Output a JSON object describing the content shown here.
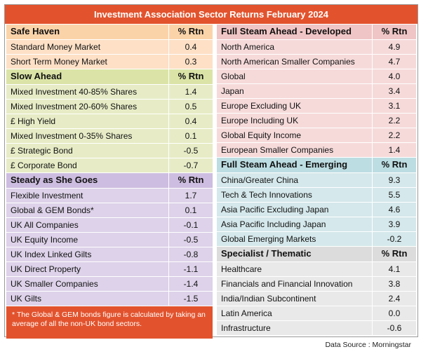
{
  "title": "Investment Association Sector Returns February 2024",
  "header_val": "% Rtn",
  "left": {
    "safe_haven": {
      "heading": "Safe Haven",
      "rows": [
        {
          "name": "Standard Money Market",
          "val": "0.4"
        },
        {
          "name": "Short Term Money Market",
          "val": "0.3"
        }
      ]
    },
    "slow_ahead": {
      "heading": "Slow Ahead",
      "rows": [
        {
          "name": "Mixed Investment 40-85% Shares",
          "val": "1.4"
        },
        {
          "name": "Mixed Investment 20-60% Shares",
          "val": "0.5"
        },
        {
          "name": "£ High Yield",
          "val": "0.4"
        },
        {
          "name": "Mixed Investment 0-35% Shares",
          "val": "0.1"
        },
        {
          "name": "£ Strategic Bond",
          "val": "-0.5"
        },
        {
          "name": "£ Corporate Bond",
          "val": "-0.7"
        }
      ]
    },
    "steady": {
      "heading": "Steady as She Goes",
      "rows": [
        {
          "name": "Flexible Investment",
          "val": "1.7"
        },
        {
          "name": "Global & GEM Bonds*",
          "val": "0.1"
        },
        {
          "name": "UK All Companies",
          "val": "-0.1"
        },
        {
          "name": "UK Equity Income",
          "val": "-0.5"
        },
        {
          "name": "UK Index Linked Gilts",
          "val": "-0.8"
        },
        {
          "name": "UK Direct Property",
          "val": "-1.1"
        },
        {
          "name": "UK Smaller Companies",
          "val": "-1.4"
        },
        {
          "name": "UK Gilts",
          "val": "-1.5"
        }
      ]
    },
    "note": "* The Global & GEM bonds figure is calculated by taking an average of all the non-UK bond sectors."
  },
  "right": {
    "developed": {
      "heading": "Full Steam Ahead - Developed",
      "rows": [
        {
          "name": "North America",
          "val": "4.9"
        },
        {
          "name": "North American Smaller Companies",
          "val": "4.7"
        },
        {
          "name": "Global",
          "val": "4.0"
        },
        {
          "name": "Japan",
          "val": "3.4"
        },
        {
          "name": "Europe Excluding UK",
          "val": "3.1"
        },
        {
          "name": "Europe Including UK",
          "val": "2.2"
        },
        {
          "name": "Global Equity Income",
          "val": "2.2"
        },
        {
          "name": "European Smaller Companies",
          "val": "1.4"
        }
      ]
    },
    "emerging": {
      "heading": "Full Steam Ahead - Emerging",
      "rows": [
        {
          "name": "China/Greater China",
          "val": "9.3"
        },
        {
          "name": "Tech & Tech Innovations",
          "val": "5.5"
        },
        {
          "name": "Asia Pacific Excluding Japan",
          "val": "4.6"
        },
        {
          "name": "Asia Pacific Including Japan",
          "val": "3.9"
        },
        {
          "name": "Global Emerging Markets",
          "val": "-0.2"
        }
      ]
    },
    "specialist": {
      "heading": "Specialist / Thematic",
      "rows": [
        {
          "name": "Healthcare",
          "val": "4.1"
        },
        {
          "name": "Financials and Financial Innovation",
          "val": "3.8"
        },
        {
          "name": "India/Indian Subcontinent",
          "val": "2.4"
        },
        {
          "name": "Latin America",
          "val": "0.0"
        },
        {
          "name": "Infrastructure",
          "val": "-0.6"
        }
      ]
    }
  },
  "source": "Data Source : Morningstar",
  "colors": {
    "title_bar": "#e2532d",
    "safe_haven": "#fde0c6",
    "slow_ahead": "#e7ecc6",
    "steady": "#ddd2e9",
    "developed": "#f6dada",
    "emerging": "#d5e8eb",
    "specialist": "#e9e9e9"
  }
}
